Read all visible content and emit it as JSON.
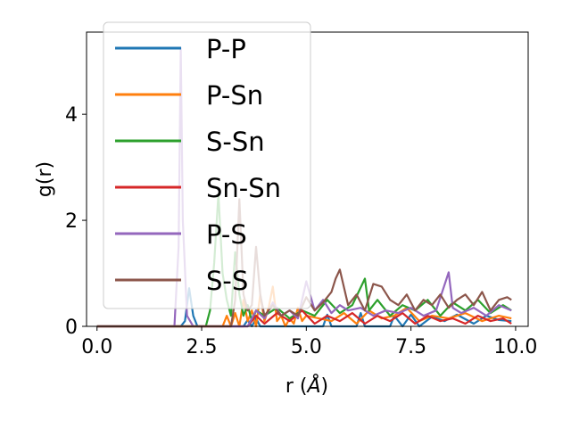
{
  "chart_data": {
    "type": "line",
    "title": "",
    "xlabel": "r (",
    "xlabel_symbol": "Å",
    "xlabel_suffix": ")",
    "ylabel": "g(r)",
    "xlim": [
      -0.25,
      10.3
    ],
    "ylim": [
      0,
      5.55
    ],
    "xticks": [
      0,
      2.5,
      5,
      7.5,
      10
    ],
    "xtick_labels": [
      "0.0",
      "2.5",
      "5.0",
      "7.5",
      "10.0"
    ],
    "yticks": [
      0,
      2,
      4
    ],
    "ytick_labels": [
      "0",
      "2",
      "4"
    ],
    "grid": false,
    "legend_position": "upper-left",
    "series": [
      {
        "name": "P-P",
        "color": "#1f77b4",
        "x": [
          0,
          1.9,
          2.0,
          2.1,
          2.2,
          2.3,
          2.4,
          2.5,
          3.5,
          3.6,
          3.7,
          3.8,
          3.9,
          4.0,
          5.4,
          5.5,
          5.6,
          5.7,
          6.2,
          6.3,
          6.4,
          7.0,
          7.1,
          7.3,
          7.5,
          7.7,
          8.0,
          8.3,
          8.6,
          9.0,
          9.3,
          9.6,
          9.9
        ],
        "y": [
          0,
          0,
          0,
          0.1,
          0.72,
          0.2,
          0,
          0,
          0,
          0.12,
          0,
          0.15,
          0,
          0,
          0,
          0.22,
          0,
          0,
          0,
          0.25,
          0,
          0,
          0.2,
          0,
          0.22,
          0,
          0.18,
          0.1,
          0.22,
          0.05,
          0.2,
          0.12,
          0.1
        ]
      },
      {
        "name": "P-Sn",
        "color": "#ff7f0e",
        "x": [
          0,
          2.8,
          3.0,
          3.1,
          3.2,
          3.3,
          3.4,
          3.5,
          3.6,
          3.7,
          3.8,
          3.9,
          4.0,
          4.1,
          4.2,
          4.3,
          4.4,
          4.5,
          4.6,
          4.7,
          4.8,
          4.9,
          5.0,
          5.3,
          5.6,
          5.9,
          6.2,
          6.5,
          6.8,
          7.1,
          7.4,
          7.7,
          8.0,
          8.4,
          8.8,
          9.2,
          9.6,
          9.9
        ],
        "y": [
          0,
          0,
          0,
          0.2,
          0,
          0.25,
          0,
          0.5,
          0.1,
          0.3,
          0,
          0.6,
          0.1,
          0.35,
          0.75,
          0.1,
          0.2,
          0,
          0.15,
          0.05,
          0.35,
          0.1,
          0.2,
          0.15,
          0.1,
          0.25,
          0.05,
          0.3,
          0.15,
          0.2,
          0.35,
          0.1,
          0.2,
          0.15,
          0.25,
          0.1,
          0.2,
          0.15
        ]
      },
      {
        "name": "S-Sn",
        "color": "#2ca02c",
        "x": [
          0,
          2.6,
          2.7,
          2.8,
          2.9,
          3.0,
          3.1,
          3.2,
          3.3,
          3.4,
          3.5,
          3.6,
          3.7,
          3.8,
          4.0,
          4.3,
          4.6,
          4.9,
          5.2,
          5.5,
          5.8,
          6.1,
          6.4,
          6.5,
          6.7,
          7.0,
          7.3,
          7.6,
          7.9,
          8.2,
          8.5,
          8.8,
          9.1,
          9.4,
          9.7,
          9.9
        ],
        "y": [
          0,
          0,
          0.3,
          1.2,
          2.5,
          1.0,
          0.5,
          0.2,
          1.4,
          0.6,
          0.2,
          0.4,
          0.1,
          0.3,
          0.2,
          0.35,
          0.15,
          0.3,
          0.2,
          0.5,
          0.25,
          0.4,
          0.9,
          0.3,
          0.5,
          0.2,
          0.4,
          0.3,
          0.5,
          0.2,
          0.45,
          0.3,
          0.5,
          0.25,
          0.4,
          0.3
        ]
      },
      {
        "name": "Sn-Sn",
        "color": "#d62728",
        "x": [
          0,
          3.6,
          3.8,
          4.0,
          4.3,
          4.6,
          4.9,
          5.2,
          5.5,
          5.8,
          6.1,
          6.4,
          6.7,
          7.0,
          7.3,
          7.6,
          7.9,
          8.2,
          8.5,
          8.8,
          9.1,
          9.4,
          9.7,
          9.9
        ],
        "y": [
          0,
          0,
          0.2,
          0.05,
          0.25,
          0.1,
          0.3,
          0.05,
          0.2,
          0.1,
          0.25,
          0.05,
          0.2,
          0.1,
          0.25,
          0.05,
          0.2,
          0.1,
          0.15,
          0.05,
          0.2,
          0.1,
          0.15,
          0.05
        ]
      },
      {
        "name": "P-S",
        "color": "#9467bd",
        "x": [
          0,
          1.85,
          1.95,
          2.0,
          2.05,
          2.15,
          2.3,
          3.6,
          3.8,
          4.0,
          4.2,
          4.4,
          4.6,
          4.8,
          5.0,
          5.2,
          5.4,
          5.6,
          5.8,
          6.0,
          6.3,
          6.6,
          6.9,
          7.2,
          7.5,
          7.8,
          8.1,
          8.4,
          8.5,
          8.7,
          9.0,
          9.3,
          9.6,
          9.9
        ],
        "y": [
          0,
          0,
          1.5,
          5.25,
          2.0,
          0.2,
          0,
          0,
          0.3,
          0.15,
          0.45,
          0.2,
          0.3,
          0.15,
          0.85,
          0.3,
          0.5,
          0.25,
          0.4,
          0.3,
          0.35,
          0.2,
          0.3,
          0.25,
          0.35,
          0.2,
          0.3,
          1.02,
          0.35,
          0.25,
          0.35,
          0.2,
          0.4,
          0.3
        ]
      },
      {
        "name": "S-S",
        "color": "#8c564b",
        "x": [
          0,
          3.2,
          3.3,
          3.4,
          3.5,
          3.6,
          3.7,
          3.8,
          3.9,
          4.0,
          4.2,
          4.4,
          4.6,
          4.8,
          5.0,
          5.2,
          5.4,
          5.6,
          5.7,
          5.8,
          6.0,
          6.2,
          6.4,
          6.6,
          6.8,
          7.0,
          7.2,
          7.4,
          7.6,
          7.8,
          8.0,
          8.2,
          8.4,
          8.6,
          8.8,
          9.0,
          9.2,
          9.4,
          9.6,
          9.8,
          9.9
        ],
        "y": [
          0,
          0,
          0.5,
          2.4,
          0.6,
          0.3,
          0.4,
          1.5,
          0.6,
          0.2,
          0.4,
          0.2,
          0.3,
          0.2,
          0.55,
          0.3,
          0.45,
          0.65,
          0.9,
          1.07,
          0.4,
          0.6,
          0.3,
          0.8,
          0.75,
          0.5,
          0.4,
          0.6,
          0.3,
          0.5,
          0.4,
          0.6,
          0.35,
          0.5,
          0.6,
          0.4,
          0.65,
          0.3,
          0.5,
          0.55,
          0.5
        ]
      }
    ]
  }
}
